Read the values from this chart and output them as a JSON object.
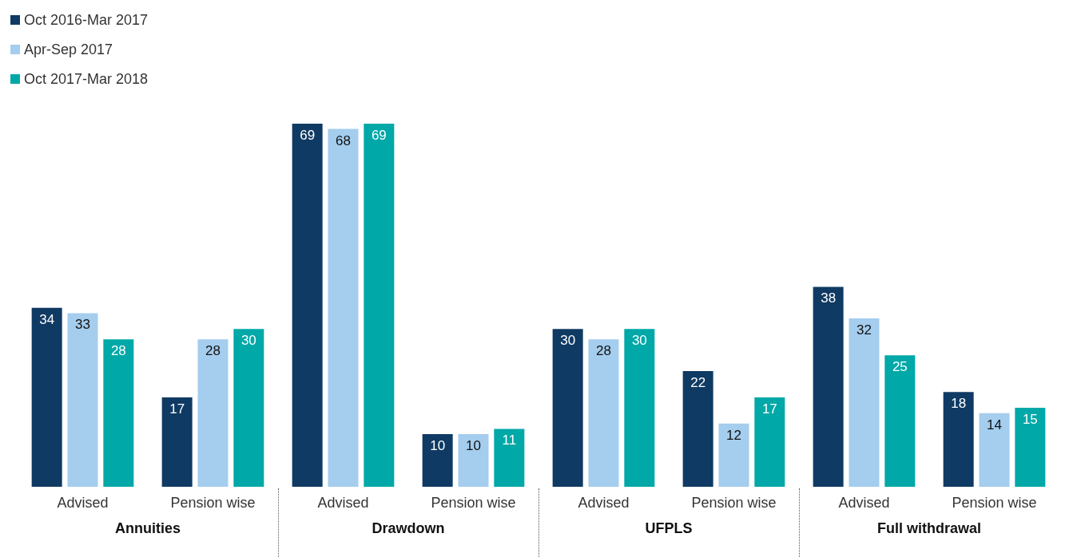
{
  "chart_data": {
    "type": "bar",
    "categories": [
      "Advised",
      "Pension wise",
      "Advised",
      "Pension wise",
      "Advised",
      "Pension wise",
      "Advised",
      "Pension wise"
    ],
    "series": [
      {
        "name": "Oct 2016-Mar 2017",
        "color": "#0f3a63",
        "values": [
          34,
          17,
          69,
          10,
          30,
          22,
          38,
          18
        ]
      },
      {
        "name": "Apr-Sep 2017",
        "color": "#a4cdee",
        "values": [
          33,
          28,
          68,
          10,
          28,
          12,
          32,
          14
        ]
      },
      {
        "name": "Oct 2017-Mar 2018",
        "color": "#00a8a8",
        "values": [
          28,
          30,
          69,
          11,
          30,
          17,
          25,
          15
        ]
      }
    ],
    "annotations": [
      "Annuities",
      "Drawdown",
      "UFPLS",
      "Full withdrawal"
    ],
    "data_labels": true,
    "grid": false,
    "legend": "top left"
  }
}
